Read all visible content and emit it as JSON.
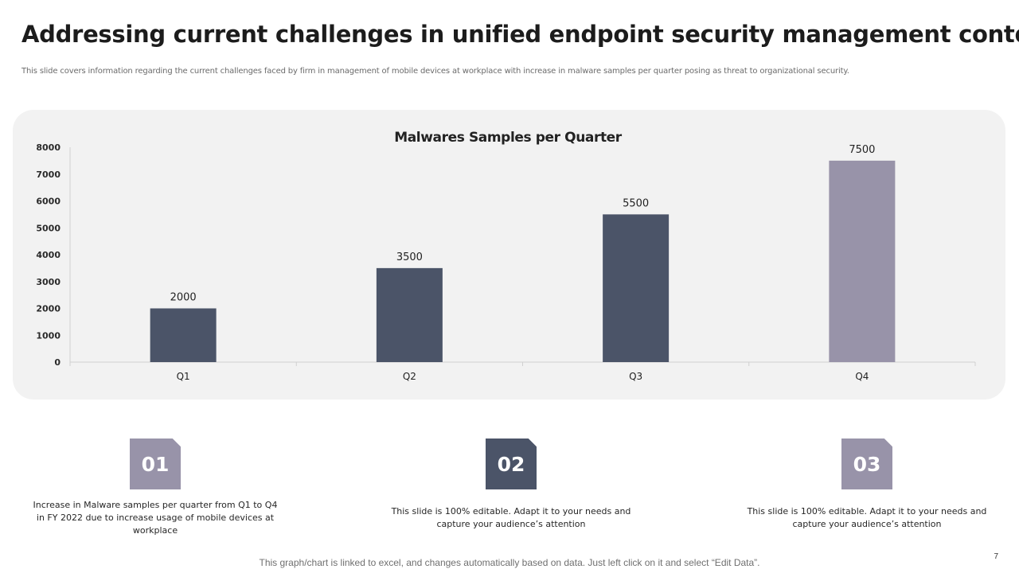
{
  "slide": {
    "title": "Addressing current challenges in unified endpoint security management contd..",
    "subtitle": "This slide covers information regarding the current challenges faced by firm in management  of mobile devices at workplace with increase in malware samples per quarter posing as threat to  organizational security.",
    "footer_note": "This graph/chart is linked to excel, and changes automatically based on data. Just left click on it and select “Edit Data”.",
    "page_number": "7"
  },
  "chart_data": {
    "type": "bar",
    "title": "Malwares Samples per Quarter",
    "xlabel": "",
    "ylabel": "",
    "categories": [
      "Q1",
      "Q2",
      "Q3",
      "Q4"
    ],
    "values": [
      2000,
      3500,
      5500,
      7500
    ],
    "data_labels": [
      "2000",
      "3500",
      "5500",
      "7500"
    ],
    "ylim": [
      0,
      8000
    ],
    "yticks": [
      0,
      1000,
      2000,
      3000,
      4000,
      5000,
      6000,
      7000,
      8000
    ],
    "ytick_labels": [
      "0",
      "1000",
      "2000",
      "3000",
      "4000",
      "5000",
      "6000",
      "7000",
      "8000"
    ],
    "grid": false,
    "legend": "none",
    "bar_colors": [
      "#4b5468",
      "#4b5468",
      "#4b5468",
      "#9893a9"
    ]
  },
  "points": [
    {
      "number": "01",
      "text": "Increase in Malware samples per quarter from Q1 to Q4 in FY 2022 due to  increase usage of mobile devices at workplace",
      "color": "#9893a9"
    },
    {
      "number": "02",
      "text": "This slide is 100% editable. Adapt it to your needs and capture your audience’s attention",
      "color": "#4b5468"
    },
    {
      "number": "03",
      "text": "This slide is 100% editable. Adapt it to your needs and capture your audience’s attention",
      "color": "#9893a9"
    }
  ]
}
